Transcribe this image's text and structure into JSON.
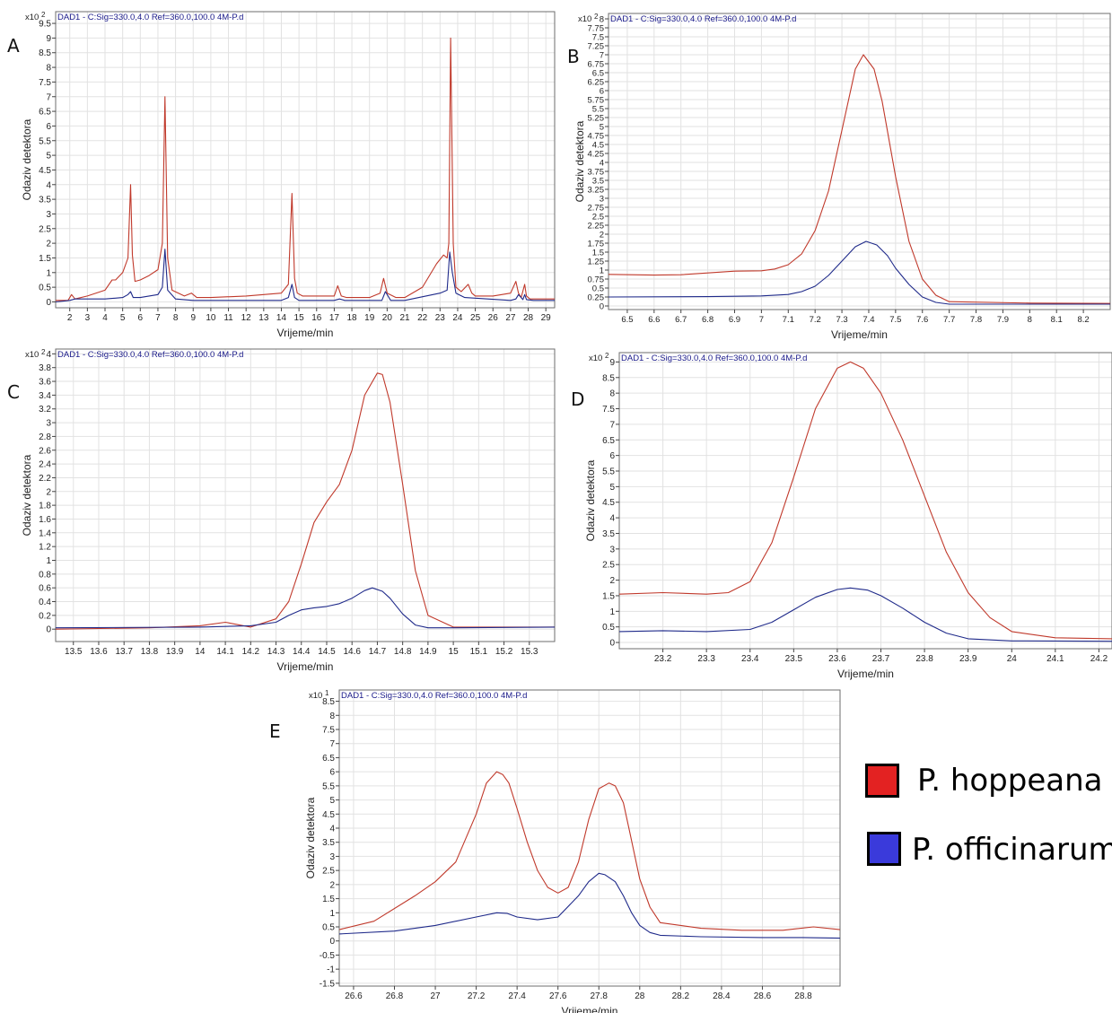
{
  "colors": {
    "hoppeana": "#c0392b",
    "officinarum": "#1f2a8a",
    "grid": "#e2e2e2",
    "frame": "#6d6d6d"
  },
  "legend": [
    {
      "label": "P. hoppeana",
      "color": "#e32222"
    },
    {
      "label": "P. officinarum",
      "color": "#3a3adb"
    }
  ],
  "chart_data": [
    {
      "type": "line",
      "panel": "A",
      "header": "DAD1 - C:Sig=330.0,4.0  Ref=360.0,100.0 4M-P.d",
      "yscale": "x10 2",
      "xlabel": "Vrijeme/min",
      "ylabel": "Odaziv detektora",
      "xlim": [
        1.2,
        29.5
      ],
      "ylim": [
        -0.2,
        9.9
      ],
      "xticks": [
        2,
        3,
        4,
        5,
        6,
        7,
        8,
        9,
        10,
        11,
        12,
        13,
        14,
        15,
        16,
        17,
        18,
        19,
        20,
        21,
        22,
        23,
        24,
        25,
        26,
        27,
        28,
        29
      ],
      "yticks": [
        0,
        0.5,
        1,
        1.5,
        2,
        2.5,
        3,
        3.5,
        4,
        4.5,
        5,
        5.5,
        6,
        6.5,
        7,
        7.5,
        8,
        8.5,
        9,
        9.5
      ],
      "series": [
        {
          "name": "P. hoppeana",
          "x": [
            1.2,
            1.9,
            2.1,
            2.3,
            3,
            4,
            4.4,
            4.6,
            5,
            5.3,
            5.45,
            5.55,
            5.7,
            6,
            6.5,
            7,
            7.25,
            7.4,
            7.55,
            7.8,
            8.5,
            8.9,
            9.2,
            10,
            12,
            13,
            14,
            14.4,
            14.6,
            14.75,
            14.9,
            15.2,
            16,
            17,
            17.2,
            17.4,
            17.7,
            19,
            19.6,
            19.8,
            20,
            20.5,
            21,
            22,
            22.8,
            23.2,
            23.4,
            23.5,
            23.6,
            23.75,
            23.9,
            24.2,
            24.6,
            24.8,
            25,
            25.5,
            26,
            27,
            27.3,
            27.45,
            27.6,
            27.8,
            27.9,
            28.1,
            29,
            29.5
          ],
          "y": [
            0.05,
            0.05,
            0.25,
            0.1,
            0.2,
            0.4,
            0.75,
            0.75,
            1.0,
            1.5,
            4.0,
            1.6,
            0.7,
            0.75,
            0.9,
            1.1,
            2.0,
            7.0,
            1.5,
            0.4,
            0.2,
            0.3,
            0.15,
            0.15,
            0.2,
            0.25,
            0.3,
            0.6,
            3.7,
            0.8,
            0.3,
            0.2,
            0.2,
            0.2,
            0.55,
            0.2,
            0.15,
            0.15,
            0.3,
            0.8,
            0.3,
            0.15,
            0.15,
            0.5,
            1.3,
            1.6,
            1.5,
            2.0,
            9.0,
            2.0,
            0.5,
            0.35,
            0.6,
            0.3,
            0.2,
            0.2,
            0.2,
            0.3,
            0.7,
            0.3,
            0.15,
            0.6,
            0.2,
            0.1,
            0.1,
            0.1
          ]
        },
        {
          "name": "P. officinarum",
          "x": [
            1.2,
            2,
            2.3,
            4,
            5,
            5.3,
            5.45,
            5.6,
            6,
            7,
            7.25,
            7.4,
            7.55,
            8,
            9,
            12,
            14,
            14.4,
            14.6,
            14.75,
            15,
            17,
            17.3,
            17.6,
            19,
            19.7,
            19.9,
            20.2,
            21,
            23,
            23.4,
            23.55,
            23.7,
            23.9,
            24.4,
            27,
            27.3,
            27.45,
            27.7,
            27.8,
            27.9,
            28.3,
            29.5
          ],
          "y": [
            0.0,
            0.05,
            0.1,
            0.1,
            0.15,
            0.25,
            0.35,
            0.15,
            0.15,
            0.25,
            0.5,
            1.8,
            0.4,
            0.1,
            0.05,
            0.05,
            0.05,
            0.15,
            0.6,
            0.15,
            0.05,
            0.05,
            0.1,
            0.05,
            0.05,
            0.05,
            0.35,
            0.05,
            0.05,
            0.3,
            0.4,
            1.7,
            1.0,
            0.3,
            0.15,
            0.05,
            0.1,
            0.25,
            0.08,
            0.25,
            0.08,
            0.05,
            0.05
          ]
        }
      ]
    },
    {
      "type": "line",
      "panel": "B",
      "header": "DAD1 - C:Sig=330.0,4.0  Ref=360.0,100.0 4M-P.d",
      "yscale": "x10 2",
      "xlabel": "Vrijeme/min",
      "ylabel": "Odaziv detektora",
      "xlim": [
        6.43,
        8.3
      ],
      "ylim": [
        -0.1,
        8.15
      ],
      "xticks": [
        6.5,
        6.6,
        6.7,
        6.8,
        6.9,
        7,
        7.1,
        7.2,
        7.3,
        7.4,
        7.5,
        7.6,
        7.7,
        7.8,
        7.9,
        8,
        8.1,
        8.2
      ],
      "yticks": [
        0,
        0.25,
        0.5,
        0.75,
        1,
        1.25,
        1.5,
        1.75,
        2,
        2.25,
        2.5,
        2.75,
        3,
        3.25,
        3.5,
        3.75,
        4,
        4.25,
        4.5,
        4.75,
        5,
        5.25,
        5.5,
        5.75,
        6,
        6.25,
        6.5,
        6.75,
        7,
        7.25,
        7.5,
        7.75,
        8
      ],
      "series": [
        {
          "name": "P. hoppeana",
          "x": [
            6.43,
            6.6,
            6.7,
            6.8,
            6.9,
            7.0,
            7.05,
            7.1,
            7.15,
            7.2,
            7.25,
            7.3,
            7.35,
            7.38,
            7.42,
            7.45,
            7.5,
            7.55,
            7.6,
            7.65,
            7.7,
            8.0,
            8.3
          ],
          "y": [
            0.88,
            0.86,
            0.87,
            0.92,
            0.97,
            0.98,
            1.03,
            1.15,
            1.45,
            2.1,
            3.2,
            4.9,
            6.6,
            7.0,
            6.6,
            5.7,
            3.6,
            1.8,
            0.75,
            0.3,
            0.12,
            0.08,
            0.07
          ]
        },
        {
          "name": "P. officinarum",
          "x": [
            6.43,
            6.8,
            7.0,
            7.1,
            7.15,
            7.2,
            7.25,
            7.3,
            7.35,
            7.39,
            7.43,
            7.47,
            7.5,
            7.55,
            7.6,
            7.65,
            7.7,
            8.3
          ],
          "y": [
            0.25,
            0.26,
            0.28,
            0.32,
            0.4,
            0.55,
            0.85,
            1.25,
            1.65,
            1.8,
            1.7,
            1.4,
            1.05,
            0.6,
            0.25,
            0.1,
            0.05,
            0.05
          ]
        }
      ]
    },
    {
      "type": "line",
      "panel": "C",
      "header": "DAD1 - C:Sig=330.0,4.0  Ref=360.0,100.0 4M-P.d",
      "yscale": "x10 2",
      "xlabel": "Vrijeme/min",
      "ylabel": "Odaziv detektora",
      "xlim": [
        13.43,
        15.4
      ],
      "ylim": [
        -0.18,
        4.07
      ],
      "xticks": [
        13.5,
        13.6,
        13.7,
        13.8,
        13.9,
        14,
        14.1,
        14.2,
        14.3,
        14.4,
        14.5,
        14.6,
        14.7,
        14.8,
        14.9,
        15,
        15.1,
        15.2,
        15.3
      ],
      "yticks": [
        0,
        0.2,
        0.4,
        0.6,
        0.8,
        1,
        1.2,
        1.4,
        1.6,
        1.8,
        2,
        2.2,
        2.4,
        2.6,
        2.8,
        3,
        3.2,
        3.4,
        3.6,
        3.8,
        4
      ],
      "series": [
        {
          "name": "P. hoppeana",
          "x": [
            13.43,
            13.8,
            14.0,
            14.1,
            14.2,
            14.3,
            14.35,
            14.4,
            14.45,
            14.5,
            14.55,
            14.6,
            14.65,
            14.7,
            14.72,
            14.75,
            14.8,
            14.85,
            14.9,
            15.0,
            15.4
          ],
          "y": [
            0.0,
            0.02,
            0.05,
            0.1,
            0.03,
            0.15,
            0.4,
            0.95,
            1.55,
            1.85,
            2.1,
            2.6,
            3.4,
            3.72,
            3.7,
            3.3,
            2.1,
            0.85,
            0.2,
            0.03,
            0.03
          ]
        },
        {
          "name": "P. officinarum",
          "x": [
            13.43,
            14.0,
            14.2,
            14.3,
            14.35,
            14.4,
            14.45,
            14.5,
            14.55,
            14.6,
            14.65,
            14.68,
            14.72,
            14.75,
            14.8,
            14.85,
            14.9,
            15.0,
            15.4
          ],
          "y": [
            0.02,
            0.03,
            0.05,
            0.1,
            0.2,
            0.28,
            0.31,
            0.33,
            0.37,
            0.45,
            0.56,
            0.6,
            0.55,
            0.45,
            0.22,
            0.06,
            0.02,
            0.02,
            0.03
          ]
        }
      ]
    },
    {
      "type": "line",
      "panel": "D",
      "header": "DAD1 - C:Sig=330.0,4.0  Ref=360.0,100.0 4M-P.d",
      "yscale": "x10 2",
      "xlabel": "Vrijeme/min",
      "ylabel": "Odaziv detektora",
      "xlim": [
        23.1,
        24.23
      ],
      "ylim": [
        -0.2,
        9.3
      ],
      "xticks": [
        23.2,
        23.3,
        23.4,
        23.5,
        23.6,
        23.7,
        23.8,
        23.9,
        24,
        24.1,
        24.2
      ],
      "yticks": [
        0,
        0.5,
        1,
        1.5,
        2,
        2.5,
        3,
        3.5,
        4,
        4.5,
        5,
        5.5,
        6,
        6.5,
        7,
        7.5,
        8,
        8.5,
        9
      ],
      "series": [
        {
          "name": "P. hoppeana",
          "x": [
            23.1,
            23.2,
            23.3,
            23.35,
            23.4,
            23.45,
            23.5,
            23.55,
            23.6,
            23.63,
            23.66,
            23.7,
            23.75,
            23.8,
            23.85,
            23.9,
            23.95,
            24.0,
            24.1,
            24.23
          ],
          "y": [
            1.55,
            1.6,
            1.55,
            1.6,
            1.95,
            3.2,
            5.3,
            7.5,
            8.8,
            9.0,
            8.8,
            8.0,
            6.5,
            4.7,
            2.9,
            1.6,
            0.8,
            0.35,
            0.15,
            0.12
          ]
        },
        {
          "name": "P. officinarum",
          "x": [
            23.1,
            23.2,
            23.3,
            23.4,
            23.45,
            23.5,
            23.55,
            23.6,
            23.63,
            23.67,
            23.7,
            23.75,
            23.8,
            23.85,
            23.9,
            24.0,
            24.23
          ],
          "y": [
            0.35,
            0.38,
            0.35,
            0.42,
            0.65,
            1.05,
            1.45,
            1.7,
            1.75,
            1.68,
            1.5,
            1.1,
            0.65,
            0.3,
            0.12,
            0.05,
            0.04
          ]
        }
      ]
    },
    {
      "type": "line",
      "panel": "E",
      "header": "DAD1 - C:Sig=330.0,4.0  Ref=360.0,100.0 4M-P.d",
      "yscale": "x10 1",
      "xlabel": "Vrijeme/min",
      "ylabel": "Odaziv detektora",
      "xlim": [
        26.53,
        28.98
      ],
      "ylim": [
        -1.6,
        8.9
      ],
      "xticks": [
        26.6,
        26.8,
        27,
        27.2,
        27.4,
        27.6,
        27.8,
        28,
        28.2,
        28.4,
        28.6,
        28.8
      ],
      "yticks": [
        -1.5,
        -1,
        -0.5,
        0,
        0.5,
        1,
        1.5,
        2,
        2.5,
        3,
        3.5,
        4,
        4.5,
        5,
        5.5,
        6,
        6.5,
        7,
        7.5,
        8,
        8.5
      ],
      "series": [
        {
          "name": "P. hoppeana",
          "x": [
            26.53,
            26.7,
            26.9,
            27.0,
            27.1,
            27.2,
            27.25,
            27.3,
            27.33,
            27.36,
            27.4,
            27.45,
            27.5,
            27.55,
            27.6,
            27.65,
            27.7,
            27.75,
            27.8,
            27.85,
            27.88,
            27.92,
            27.95,
            28.0,
            28.05,
            28.1,
            28.3,
            28.5,
            28.7,
            28.85,
            28.98
          ],
          "y": [
            0.4,
            0.7,
            1.6,
            2.1,
            2.8,
            4.5,
            5.6,
            6.0,
            5.9,
            5.6,
            4.7,
            3.5,
            2.5,
            1.9,
            1.7,
            1.9,
            2.8,
            4.3,
            5.4,
            5.6,
            5.5,
            4.9,
            3.9,
            2.2,
            1.2,
            0.65,
            0.45,
            0.38,
            0.38,
            0.5,
            0.4
          ]
        },
        {
          "name": "P. officinarum",
          "x": [
            26.53,
            26.8,
            27.0,
            27.2,
            27.3,
            27.35,
            27.4,
            27.5,
            27.6,
            27.7,
            27.75,
            27.8,
            27.83,
            27.88,
            27.92,
            27.96,
            28.0,
            28.05,
            28.1,
            28.3,
            28.6,
            28.8,
            28.98
          ],
          "y": [
            0.25,
            0.35,
            0.55,
            0.85,
            1.0,
            0.98,
            0.85,
            0.75,
            0.85,
            1.6,
            2.1,
            2.4,
            2.35,
            2.1,
            1.6,
            1.0,
            0.55,
            0.3,
            0.2,
            0.15,
            0.12,
            0.12,
            0.1
          ]
        }
      ]
    }
  ]
}
